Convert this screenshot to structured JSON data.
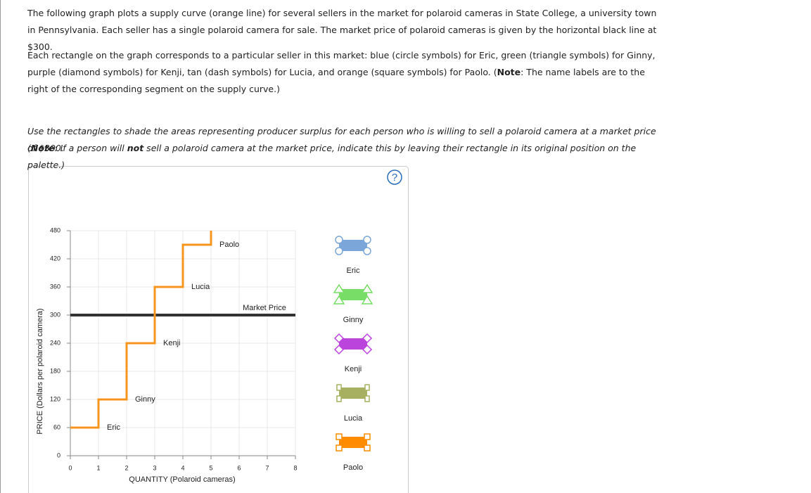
{
  "question": {
    "intro": "The following graph plots a supply curve (orange line) for several sellers in the market for polaroid cameras in State College, a university town in Pennsylvania. Each seller has a single polaroid camera for sale. The market price of polaroid cameras is given by the horizontal black line at $300.",
    "legend_text": [
      "Each rectangle on the graph corresponds to a particular seller in this market: blue (circle symbols) for Eric, green (triangle symbols) for Ginny, purple (diamond symbols) for Kenji, tan (dash symbols) for Lucia, and orange (square symbols) for Paolo. (",
      "Note",
      ": The name labels are to the right of the corresponding segment on the supply curve.)"
    ],
    "instruction": "Use the rectangles to shade the areas representing producer surplus for each person who is willing to sell a polaroid camera at a market price of $300.",
    "note": [
      "(",
      "Note",
      ": If a person will ",
      "not",
      " sell a polaroid camera at the market price, indicate this by leaving their rectangle in its original position on the palette.)"
    ]
  },
  "help_icon": "?",
  "chart_data": {
    "type": "line",
    "x_label": "QUANTITY (Polaroid cameras)",
    "y_label": "PRICE (Dollars per polaroid camera)",
    "xlim": [
      0,
      8
    ],
    "xticks": [
      0,
      1,
      2,
      3,
      4,
      5,
      6,
      7,
      8
    ],
    "ylim": [
      0,
      480
    ],
    "yticks": [
      0,
      60,
      120,
      180,
      240,
      300,
      360,
      420,
      480
    ],
    "grid": true,
    "series": [
      {
        "color": "#f7941d",
        "x": [
          0,
          1,
          1,
          2,
          2,
          3,
          3,
          4,
          4,
          5,
          5
        ],
        "values": [
          60,
          60,
          120,
          120,
          240,
          240,
          360,
          360,
          450,
          450,
          480
        ]
      }
    ],
    "segment_labels": [
      "Eric",
      "Ginny",
      "Kenji",
      "Lucia",
      "Paolo"
    ],
    "market_price": {
      "label": "Market Price",
      "value": 300,
      "color": "#333333"
    },
    "palette": [
      {
        "name": "Eric",
        "color": "#7aa6da",
        "symbol": "circle"
      },
      {
        "name": "Ginny",
        "color": "#77dd66",
        "symbol": "triangle"
      },
      {
        "name": "Kenji",
        "color": "#bb44dd",
        "symbol": "diamond"
      },
      {
        "name": "Lucia",
        "color": "#a7b060",
        "symbol": "dash"
      },
      {
        "name": "Paolo",
        "color": "#ff8c00",
        "symbol": "square"
      }
    ]
  }
}
